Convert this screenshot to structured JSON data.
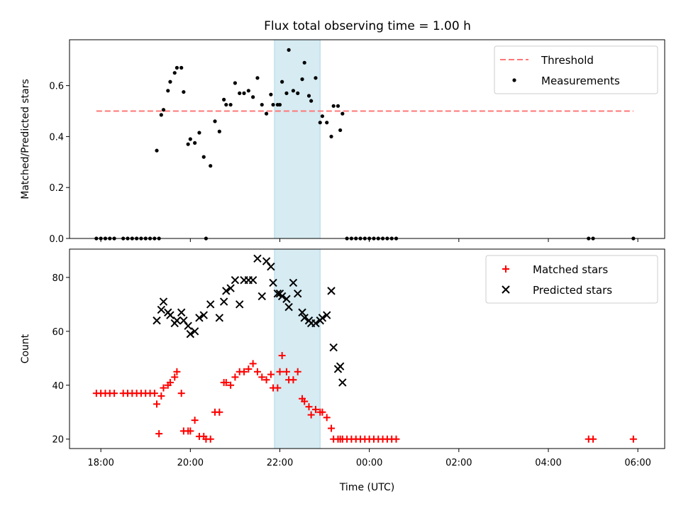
{
  "title": "Flux total observing time = 1.00 h",
  "colors": {
    "threshold": "#ff7777",
    "measurement": "#000000",
    "matched": "#ff0000",
    "predicted": "#000000",
    "highlight": "#add8e6"
  },
  "chart_data": [
    {
      "type": "scatter",
      "name": "ratio",
      "ylabel": "Matched/Predicted stars",
      "xlabel": "",
      "xlim": [
        -0.7,
        12.6
      ],
      "ylim": [
        0.0,
        0.78
      ],
      "yticks": [
        0.0,
        0.2,
        0.4,
        0.6
      ],
      "ytick_labels": [
        "0.0",
        "0.2",
        "0.4",
        "0.6"
      ],
      "highlight_span": [
        3.88,
        4.9
      ],
      "legend": {
        "placement": "top-right",
        "entries": [
          "Threshold",
          "Measurements"
        ]
      },
      "threshold": {
        "name": "Threshold",
        "y": 0.5,
        "x": [
          -0.1,
          11.9
        ]
      },
      "series": [
        {
          "name": "Measurements",
          "x": [
            -0.1,
            0.0,
            0.1,
            0.2,
            0.3,
            0.5,
            0.6,
            0.7,
            0.8,
            0.9,
            1.0,
            1.1,
            1.2,
            1.3,
            1.25,
            1.35,
            1.4,
            1.5,
            1.55,
            1.65,
            1.7,
            1.8,
            1.85,
            1.95,
            2.0,
            2.1,
            2.2,
            2.3,
            2.35,
            2.45,
            2.55,
            2.65,
            2.75,
            2.8,
            2.9,
            3.0,
            3.1,
            3.2,
            3.3,
            3.4,
            3.5,
            3.6,
            3.7,
            3.8,
            3.85,
            3.95,
            4.0,
            4.05,
            4.15,
            4.2,
            4.3,
            4.4,
            4.5,
            4.55,
            4.65,
            4.7,
            4.8,
            4.9,
            4.95,
            5.05,
            5.15,
            5.2,
            5.3,
            5.35,
            5.4,
            5.5,
            5.6,
            5.7,
            5.8,
            5.9,
            6.0,
            6.1,
            6.2,
            6.3,
            6.4,
            6.5,
            6.6,
            10.9,
            11.0,
            11.9
          ],
          "y": [
            0.0,
            0.0,
            0.0,
            0.0,
            0.0,
            0.0,
            0.0,
            0.0,
            0.0,
            0.0,
            0.0,
            0.0,
            0.0,
            0.0,
            0.345,
            0.485,
            0.505,
            0.58,
            0.615,
            0.65,
            0.67,
            0.67,
            0.575,
            0.37,
            0.39,
            0.375,
            0.415,
            0.32,
            0.0,
            0.285,
            0.46,
            0.42,
            0.545,
            0.525,
            0.525,
            0.61,
            0.57,
            0.57,
            0.58,
            0.555,
            0.63,
            0.525,
            0.49,
            0.565,
            0.525,
            0.525,
            0.525,
            0.615,
            0.57,
            0.74,
            0.58,
            0.57,
            0.625,
            0.69,
            0.56,
            0.54,
            0.63,
            0.455,
            0.48,
            0.455,
            0.4,
            0.52,
            0.52,
            0.425,
            0.49,
            0.0,
            0.0,
            0.0,
            0.0,
            0.0,
            0.0,
            0.0,
            0.0,
            0.0,
            0.0,
            0.0,
            0.0,
            0.0,
            0.0,
            0.0
          ]
        }
      ]
    },
    {
      "type": "scatter",
      "name": "counts",
      "ylabel": "Count",
      "xlabel": "Time (UTC)",
      "xlim": [
        -0.7,
        12.6
      ],
      "ylim": [
        16.5,
        90.5
      ],
      "yticks": [
        20,
        40,
        60,
        80
      ],
      "ytick_labels": [
        "20",
        "40",
        "60",
        "80"
      ],
      "xticks": [
        0,
        2,
        4,
        6,
        8,
        10,
        12
      ],
      "xtick_labels": [
        "18:00",
        "20:00",
        "22:00",
        "00:00",
        "02:00",
        "04:00",
        "06:00"
      ],
      "highlight_span": [
        3.88,
        4.9
      ],
      "legend": {
        "placement": "top-right",
        "entries": [
          "Matched stars",
          "Predicted stars"
        ]
      },
      "series": [
        {
          "name": "Matched stars",
          "marker": "plus",
          "x": [
            -0.1,
            0.0,
            0.1,
            0.2,
            0.3,
            0.5,
            0.6,
            0.7,
            0.8,
            0.9,
            1.0,
            1.1,
            1.2,
            1.3,
            1.25,
            1.35,
            1.4,
            1.5,
            1.55,
            1.65,
            1.7,
            1.8,
            1.85,
            1.95,
            2.0,
            2.1,
            2.2,
            2.3,
            2.35,
            2.45,
            2.55,
            2.65,
            2.75,
            2.8,
            2.9,
            3.0,
            3.1,
            3.2,
            3.3,
            3.4,
            3.5,
            3.6,
            3.7,
            3.8,
            3.85,
            3.95,
            4.0,
            4.05,
            4.15,
            4.2,
            4.3,
            4.4,
            4.5,
            4.55,
            4.65,
            4.7,
            4.8,
            4.9,
            4.95,
            5.05,
            5.15,
            5.2,
            5.3,
            5.35,
            5.4,
            5.5,
            5.6,
            5.7,
            5.8,
            5.9,
            6.0,
            6.1,
            6.2,
            6.3,
            6.4,
            6.5,
            6.6,
            10.9,
            11.0,
            11.9
          ],
          "y": [
            37,
            37,
            37,
            37,
            37,
            37,
            37,
            37,
            37,
            37,
            37,
            37,
            37,
            22,
            33,
            36,
            39,
            40,
            41,
            43,
            45,
            37,
            23,
            23,
            23,
            27,
            21,
            21,
            20,
            20,
            30,
            30,
            41,
            41,
            40,
            43,
            45,
            45,
            46,
            48,
            45,
            43,
            42,
            44,
            39,
            39,
            45,
            51,
            45,
            42,
            42,
            45,
            35,
            34,
            32,
            29,
            31,
            30,
            30,
            28,
            24,
            20,
            20,
            20,
            20,
            20,
            20,
            20,
            20,
            20,
            20,
            20,
            20,
            20,
            20,
            20,
            20,
            20,
            20,
            20
          ]
        },
        {
          "name": "Predicted stars",
          "marker": "x",
          "x": [
            1.25,
            1.35,
            1.4,
            1.5,
            1.55,
            1.65,
            1.7,
            1.8,
            1.85,
            1.95,
            2.0,
            2.1,
            2.2,
            2.3,
            2.45,
            2.65,
            2.75,
            2.8,
            2.9,
            3.0,
            3.1,
            3.2,
            3.3,
            3.4,
            3.5,
            3.6,
            3.7,
            3.8,
            3.85,
            3.95,
            4.0,
            4.05,
            4.15,
            4.2,
            4.3,
            4.4,
            4.5,
            4.55,
            4.65,
            4.7,
            4.8,
            4.9,
            4.95,
            5.05,
            5.15,
            5.2,
            5.3,
            5.35,
            5.4
          ],
          "y": [
            64,
            68,
            71,
            67,
            66,
            63,
            64,
            67,
            64,
            62,
            59,
            60,
            65,
            66,
            70,
            65,
            71,
            75,
            76,
            79,
            70,
            79,
            79,
            79,
            87,
            73,
            86,
            84,
            78,
            74,
            74,
            73,
            72,
            69,
            78,
            74,
            67,
            65,
            64,
            63,
            63,
            64,
            65,
            66,
            75,
            54,
            46,
            47,
            41
          ]
        }
      ]
    }
  ]
}
